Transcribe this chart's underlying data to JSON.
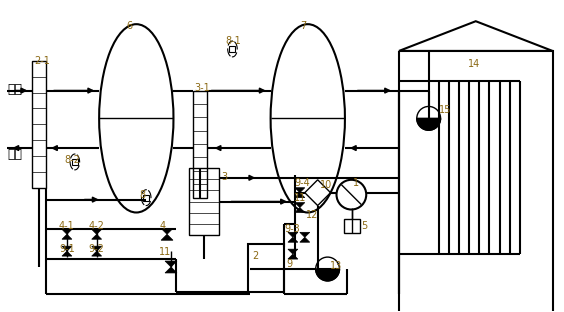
{
  "line_color": "#000000",
  "label_color": "#8B6914",
  "bg_color": "#ffffff",
  "fig_width": 5.64,
  "fig_height": 3.12,
  "dpi": 100
}
